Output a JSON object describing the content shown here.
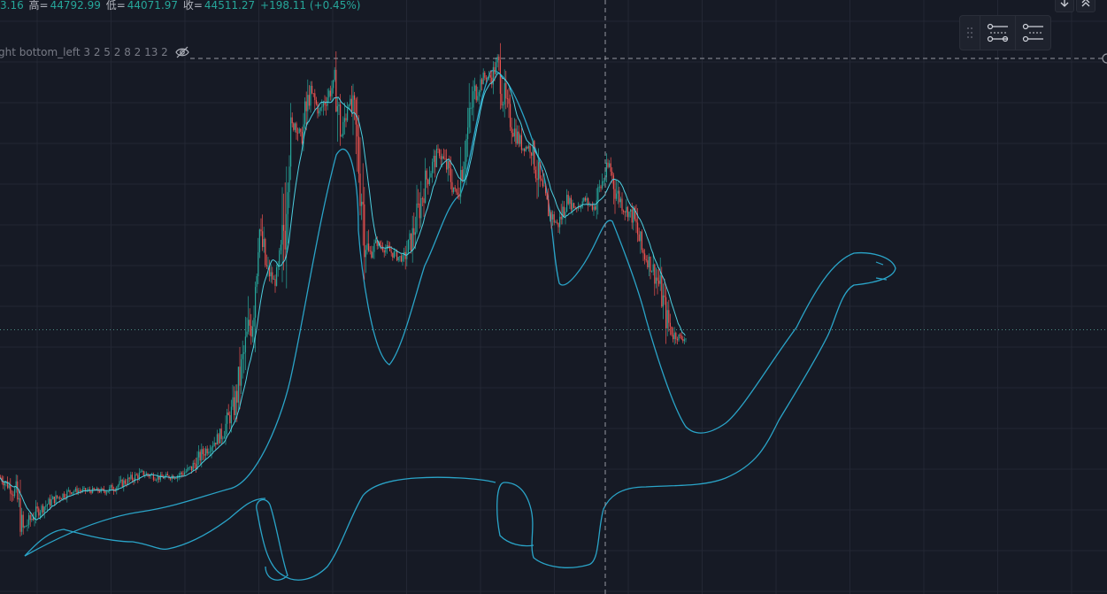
{
  "legend": {
    "open_tail": "3.16",
    "high_label": "高=",
    "high": "44792.99",
    "low_label": "低=",
    "low": "44071.97",
    "close_label": "收=",
    "close": "44511.27",
    "change": "+198.11 (+0.45%)"
  },
  "indicator": {
    "label": "ght bottom_left 3 2 5 2 8 2 13 2"
  },
  "icons": {
    "visibility": "eye-off-icon",
    "drag": "drag-handle-icon",
    "settings_a": "object-tree-icon",
    "settings_b": "data-window-icon",
    "scroll_down": "arrow-down-icon",
    "collapse": "chevron-up-icon"
  },
  "colors": {
    "background": "#161a25",
    "grid": "#232734",
    "up": "#26a69a",
    "down": "#ef5350",
    "ma": "#4dd0e1",
    "drawing": "#2aa4c8",
    "crosshair": "#9598a1",
    "price_line": "#4e8f86"
  },
  "chart_data": {
    "type": "candlestick",
    "series": [
      {
        "name": "",
        "description": "approximate candle closes (anchor path)",
        "x": [
          0,
          10,
          18,
          25,
          40,
          60,
          80,
          100,
          120,
          140,
          160,
          180,
          200,
          215,
          230,
          250,
          265,
          275,
          285,
          292,
          300,
          310,
          318,
          325,
          332,
          340,
          350,
          360,
          370,
          378,
          385,
          393,
          400,
          408,
          415,
          425,
          440,
          455,
          465,
          480,
          495,
          505,
          515,
          525,
          535,
          545,
          555,
          562,
          570,
          580,
          590,
          600,
          610,
          620,
          630,
          640,
          650,
          660,
          670,
          680,
          688,
          695,
          705,
          715,
          725,
          735,
          745,
          752,
          760,
          770,
          775
        ],
        "y": [
          43880,
          43860,
          43840,
          43760,
          43800,
          43830,
          43850,
          43850,
          43850,
          43870,
          43890,
          43880,
          43885,
          43900,
          43940,
          43980,
          44050,
          44160,
          44270,
          44460,
          44360,
          44330,
          44380,
          44640,
          44700,
          44660,
          44770,
          44720,
          44760,
          44790,
          44660,
          44750,
          44700,
          44540,
          44390,
          44420,
          44400,
          44380,
          44430,
          44560,
          44630,
          44590,
          44530,
          44640,
          44760,
          44800,
          44800,
          44840,
          44740,
          44680,
          44640,
          44640,
          44550,
          44490,
          44460,
          44520,
          44500,
          44520,
          44500,
          44560,
          44600,
          44540,
          44500,
          44480,
          44400,
          44370,
          44320,
          44250,
          44210,
          44200,
          44200
        ]
      }
    ],
    "y_range": [
      43700,
      44860
    ],
    "last_close": 44511.27,
    "current_price_line": 44220,
    "grid": true
  }
}
